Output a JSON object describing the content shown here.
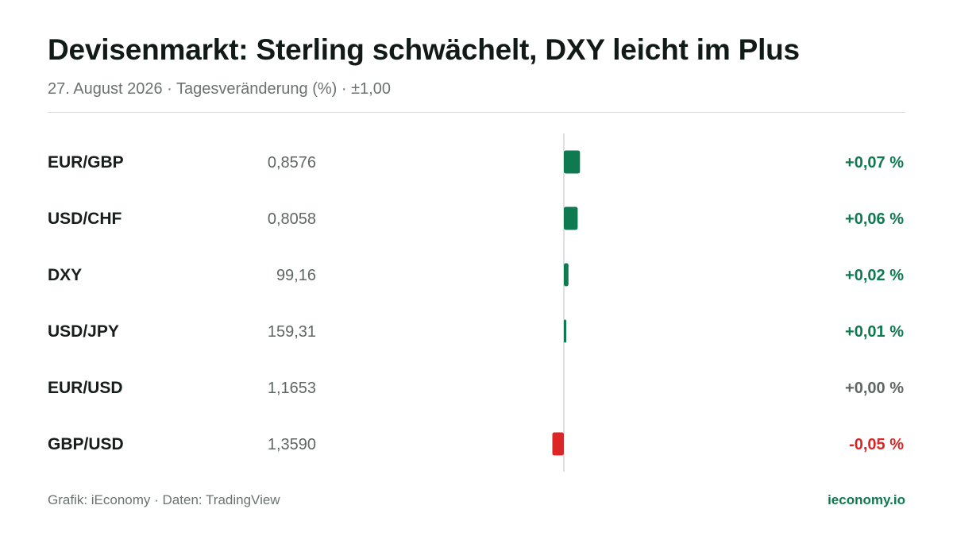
{
  "header": {
    "title": "Devisenmarkt: Sterling schwächelt, DXY leicht im Plus",
    "subtitle": "27. August 2026 · Tagesveränderung (%) · ±1,00"
  },
  "footer": {
    "source": "Grafik: iEconomy · Daten: TradingView",
    "brand": "ieconomy.io"
  },
  "colors": {
    "positive": "#0f7a4f",
    "negative": "#dc2626",
    "neutral": "#5f6664",
    "axis": "#d3d6d5"
  },
  "chart_data": {
    "type": "bar",
    "orientation": "horizontal",
    "categories": [
      "EUR/GBP",
      "USD/CHF",
      "DXY",
      "USD/JPY",
      "EUR/USD",
      "GBP/USD"
    ],
    "rates": [
      "0,8576",
      "0,8058",
      "99,16",
      "159,31",
      "1,1653",
      "1,3590"
    ],
    "values": [
      0.07,
      0.06,
      0.02,
      0.01,
      0.0,
      -0.05
    ],
    "value_labels": [
      "+0,07 %",
      "+0,06 %",
      "+0,02 %",
      "+0,01 %",
      "+0,00 %",
      "-0,05 %"
    ],
    "xlim": [
      -1,
      1
    ],
    "grid": false
  }
}
